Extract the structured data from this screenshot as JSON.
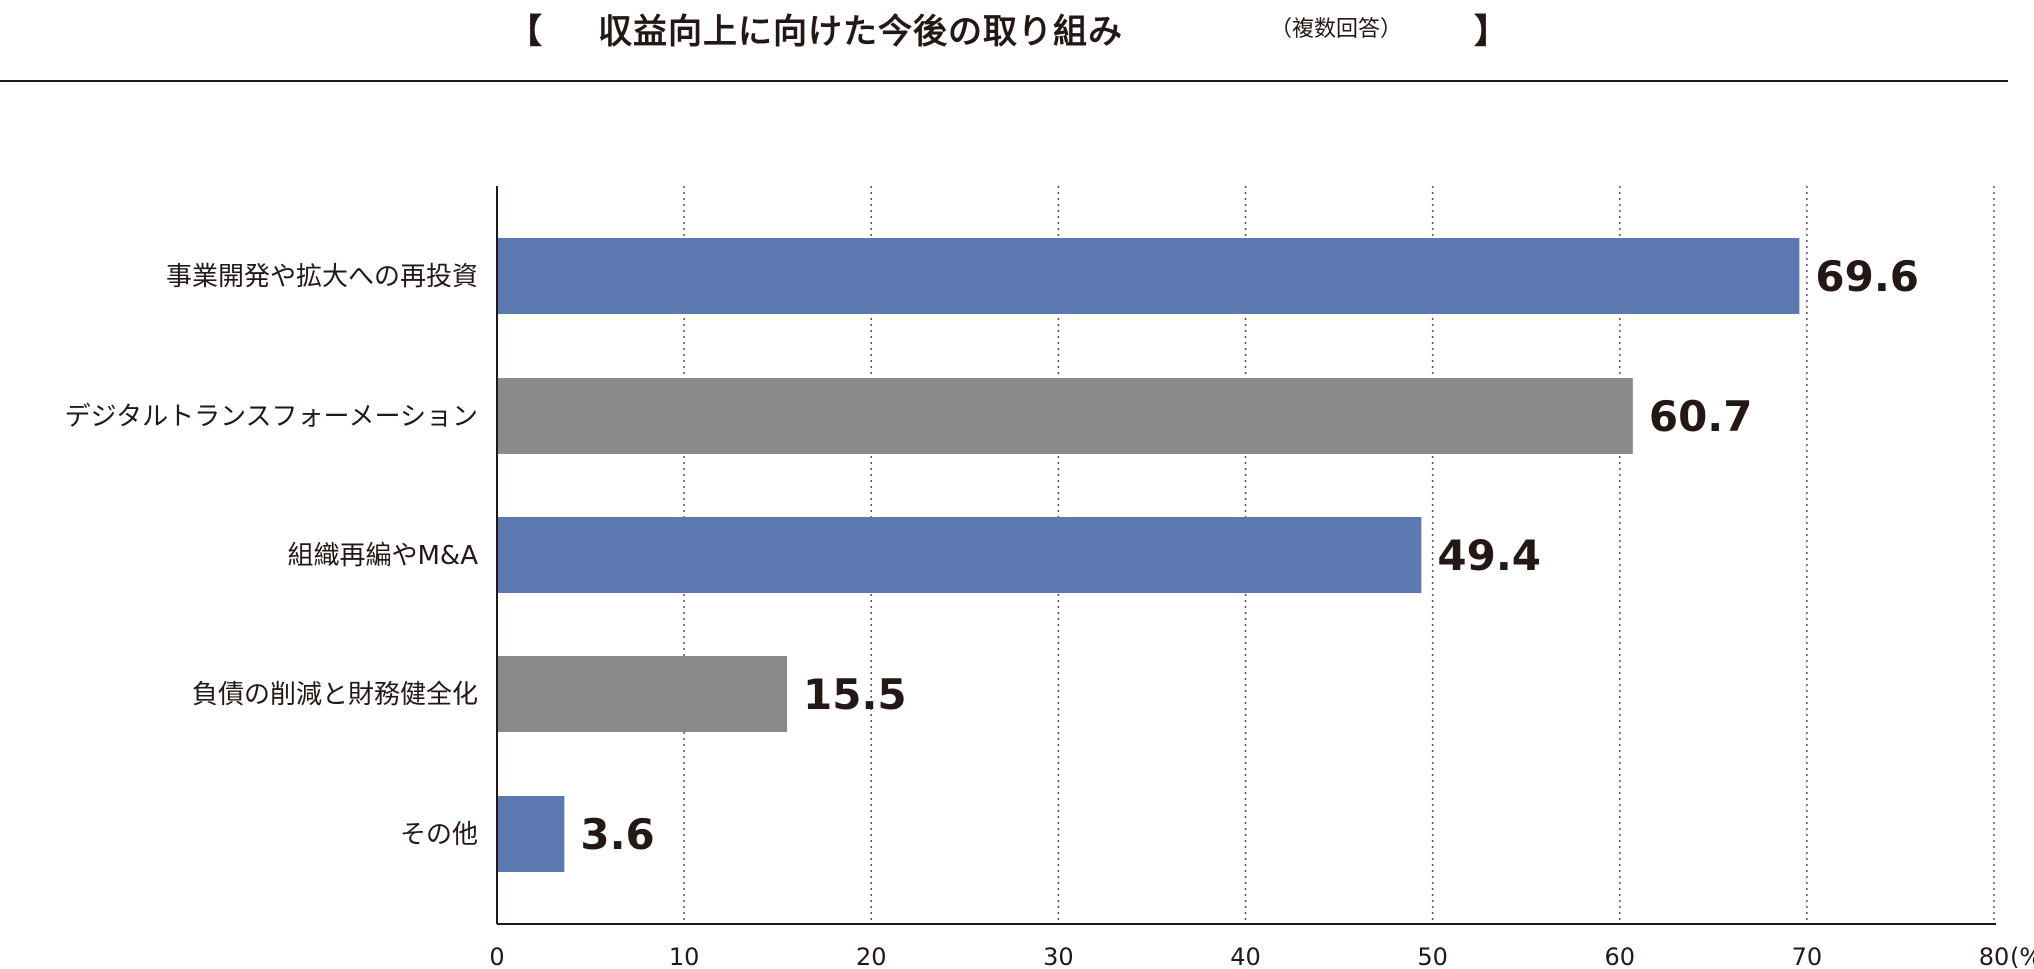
{
  "title": {
    "open_bracket": "【",
    "text": "収益向上に向けた今後の取り組み",
    "note": "（複数回答）",
    "close_bracket": "】"
  },
  "chart_data": {
    "type": "bar",
    "orientation": "horizontal",
    "categories": [
      "事業開発や拡大への再投資",
      "デジタルトランスフォーメーション",
      "組織再編やM&A",
      "負債の削減と財務健全化",
      "その他"
    ],
    "values": [
      69.6,
      60.7,
      49.4,
      15.5,
      3.6
    ],
    "value_labels": [
      "69.6",
      "60.7",
      "49.4",
      "15.5",
      "3.6"
    ],
    "bar_colors": [
      "#5b78b0",
      "#898989",
      "#5b78b0",
      "#898989",
      "#5b78b0"
    ],
    "xlim": [
      0,
      80
    ],
    "xticks": [
      0,
      10,
      20,
      30,
      40,
      50,
      60,
      70,
      80
    ],
    "x_unit": "(%)",
    "grid": "vertical-dotted",
    "legend": "none"
  }
}
